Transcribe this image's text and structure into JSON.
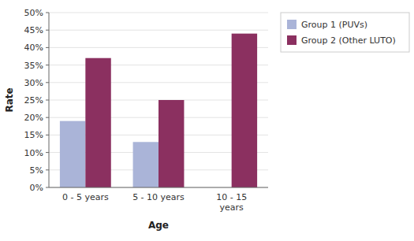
{
  "chart_data": {
    "type": "bar",
    "categories": [
      "0 - 5 years",
      "5 - 10 years",
      "10 - 15\nyears"
    ],
    "series": [
      {
        "name": "Group 1 (PUVs)",
        "color": "#aab4d8",
        "values": [
          0.19,
          0.13,
          0.0
        ]
      },
      {
        "name": "Group 2 (Other LUTO)",
        "color": "#8b3060",
        "values": [
          0.37,
          0.25,
          0.44
        ]
      }
    ],
    "x_label": "Age",
    "y_label": "Rate",
    "ylim": [
      0,
      0.5
    ],
    "yticks": [
      {
        "value": 0.0,
        "label": "0%"
      },
      {
        "value": 0.05,
        "label": "5%"
      },
      {
        "value": 0.1,
        "label": "10%"
      },
      {
        "value": 0.15,
        "label": "15%"
      },
      {
        "value": 0.2,
        "label": "20%"
      },
      {
        "value": 0.25,
        "label": "25%"
      },
      {
        "value": 0.3,
        "label": "30%"
      },
      {
        "value": 0.35,
        "label": "35%"
      },
      {
        "value": 0.4,
        "label": "40%"
      },
      {
        "value": 0.45,
        "label": "45%"
      },
      {
        "value": 0.5,
        "label": "50%"
      }
    ],
    "grid": true,
    "legend": "upper right"
  }
}
